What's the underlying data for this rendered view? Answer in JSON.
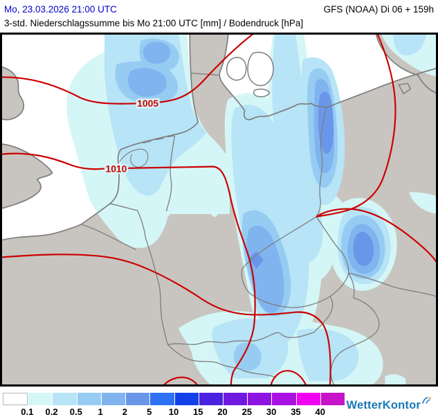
{
  "header": {
    "datetime": "Mo, 23.03.2026 21:00 UTC",
    "model_run": "GFS (NOAA) Di 06 + 159h",
    "title": "3-std. Niederschlagssumme bis Mo 21:00 UTC [mm] / Bodendruck [hPa]"
  },
  "map": {
    "isobars": [
      {
        "label": "1005"
      },
      {
        "label": "1010"
      }
    ],
    "colors": {
      "sea": "#ffffff",
      "land": "#c8c5c0",
      "border": "#7d7d7d",
      "isobar": "#cc0000",
      "frame": "#000000",
      "label_halo": "#d9f4f6",
      "date_text": "#0000cc"
    }
  },
  "legend": {
    "thresholds": [
      "0.1",
      "0.2",
      "0.5",
      "1",
      "2",
      "5",
      "10",
      "15",
      "20",
      "25",
      "30",
      "35",
      "40"
    ],
    "colors": [
      "#ffffff",
      "#d5f6f6",
      "#b7e4f6",
      "#96ccf2",
      "#80b4ef",
      "#6a96e9",
      "#2e71f4",
      "#1340e8",
      "#4a22df",
      "#6f19e0",
      "#8e15e1",
      "#a911e3",
      "#f202f2",
      "#c713c9"
    ]
  },
  "branding": {
    "name": "WetterKontor",
    "color": "#1878b8"
  }
}
